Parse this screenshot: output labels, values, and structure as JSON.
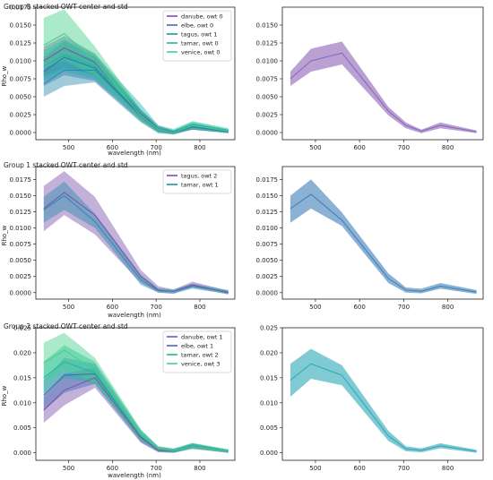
{
  "colors": {
    "danube": "#7b52ab",
    "elbe": "#3f6fb0",
    "tagus": "#2a8cae",
    "tamar": "#1fb5a8",
    "venice": "#43d08a",
    "purple": "#8b63b8",
    "blue": "#3d7fb8",
    "teal": "#2ba7b8"
  },
  "chart_data": [
    {
      "panel": "group0-stacked",
      "type": "area",
      "title": "Group 0 stacked OWT center and std",
      "xlabel": "wavelength (nm)",
      "ylabel": "Rho_w",
      "xlim": [
        425,
        880
      ],
      "ylim": [
        -0.001,
        0.0175
      ],
      "xticks": [
        500,
        600,
        700,
        800
      ],
      "yticks": [
        0.0,
        0.0025,
        0.005,
        0.0075,
        0.01,
        0.0125,
        0.015,
        0.0175
      ],
      "ytick_labels": [
        "0.0000",
        "0.0025",
        "0.0050",
        "0.0075",
        "0.0100",
        "0.0125",
        "0.0150",
        "0.0175"
      ],
      "legend": "top-right",
      "x": [
        443,
        490,
        560,
        665,
        705,
        740,
        783,
        865
      ],
      "series": [
        {
          "name": "danube, owt 0",
          "color_key": "danube",
          "mean": [
            0.01,
            0.0118,
            0.0098,
            0.0026,
            0.0006,
            0.0001,
            0.0008,
            0.0001
          ],
          "lower": [
            0.0078,
            0.009,
            0.008,
            0.0018,
            0.0002,
            -0.0001,
            0.0004,
            -0.0001
          ],
          "upper": [
            0.012,
            0.0135,
            0.011,
            0.0032,
            0.001,
            0.0003,
            0.0012,
            0.0003
          ]
        },
        {
          "name": "elbe, owt 0",
          "color_key": "elbe",
          "mean": [
            0.0085,
            0.0105,
            0.009,
            0.0024,
            0.0004,
            0.0,
            0.0008,
            0.0002
          ],
          "lower": [
            0.0065,
            0.008,
            0.0072,
            0.0016,
            0.0,
            -0.0002,
            0.0004,
            0.0
          ],
          "upper": [
            0.0105,
            0.0128,
            0.0106,
            0.0032,
            0.0008,
            0.0003,
            0.0012,
            0.0004
          ]
        },
        {
          "name": "tagus, owt 1",
          "color_key": "tagus",
          "mean": [
            0.0068,
            0.0087,
            0.0087,
            0.0023,
            0.0003,
            -0.0001,
            0.0008,
            0.0001
          ],
          "lower": [
            0.005,
            0.0065,
            0.007,
            0.0014,
            -0.0001,
            -0.0003,
            0.0004,
            -0.0001
          ],
          "upper": [
            0.0088,
            0.011,
            0.0103,
            0.0031,
            0.0007,
            0.0002,
            0.0012,
            0.0003
          ]
        },
        {
          "name": "tamar, owt 0",
          "color_key": "tamar",
          "mean": [
            0.0093,
            0.0108,
            0.0093,
            0.003,
            0.0006,
            0.0002,
            0.0012,
            0.0003
          ],
          "lower": [
            0.0072,
            0.0085,
            0.0075,
            0.002,
            0.0002,
            -0.0001,
            0.0007,
            0.0
          ],
          "upper": [
            0.0115,
            0.013,
            0.011,
            0.004,
            0.001,
            0.0005,
            0.0016,
            0.0006
          ]
        },
        {
          "name": "venice, owt 0",
          "color_key": "venice",
          "mean": [
            0.0122,
            0.0138,
            0.01,
            0.0024,
            0.0004,
            0.0,
            0.001,
            0.0002
          ],
          "lower": [
            0.009,
            0.01,
            0.008,
            0.0016,
            0.0,
            -0.0002,
            0.0005,
            -0.0001
          ],
          "upper": [
            0.016,
            0.0172,
            0.012,
            0.0032,
            0.0008,
            0.0003,
            0.0015,
            0.0005
          ]
        }
      ]
    },
    {
      "panel": "group0-center",
      "type": "area",
      "title": "",
      "xlim": [
        425,
        880
      ],
      "ylim": [
        -0.001,
        0.0175
      ],
      "xticks": [
        500,
        600,
        700,
        800
      ],
      "yticks": [
        0.0,
        0.0025,
        0.005,
        0.0075,
        0.01,
        0.0125,
        0.015
      ],
      "ytick_labels": [
        "0.0000",
        "0.0025",
        "0.0050",
        "0.0075",
        "0.0100",
        "0.0125",
        "0.0150"
      ],
      "x": [
        443,
        490,
        560,
        665,
        705,
        740,
        783,
        865
      ],
      "series": [
        {
          "color_key": "purple",
          "mean": [
            0.0075,
            0.01,
            0.0111,
            0.003,
            0.001,
            0.0002,
            0.001,
            0.0001
          ],
          "lower": [
            0.0065,
            0.0085,
            0.0095,
            0.0024,
            0.0006,
            -0.0001,
            0.0006,
            -0.0001
          ],
          "upper": [
            0.0085,
            0.0117,
            0.0127,
            0.0036,
            0.0014,
            0.0004,
            0.0014,
            0.0003
          ]
        }
      ]
    },
    {
      "panel": "group1-stacked",
      "type": "area",
      "title": "Group 1 stacked OWT center and std",
      "xlabel": "wavelength (nm)",
      "ylabel": "Rho_w",
      "xlim": [
        425,
        880
      ],
      "ylim": [
        -0.001,
        0.0195
      ],
      "xticks": [
        500,
        600,
        700,
        800
      ],
      "yticks": [
        0.0,
        0.0025,
        0.005,
        0.0075,
        0.01,
        0.0125,
        0.015,
        0.0175
      ],
      "ytick_labels": [
        "0.0000",
        "0.0025",
        "0.0050",
        "0.0075",
        "0.0100",
        "0.0125",
        "0.0150",
        "0.0175"
      ],
      "legend": "top-right",
      "x": [
        443,
        490,
        560,
        665,
        705,
        740,
        783,
        865
      ],
      "series": [
        {
          "name": "tagus, owt 2",
          "color_key": "danube",
          "mean": [
            0.013,
            0.0155,
            0.012,
            0.0025,
            0.0004,
            0.0002,
            0.0012,
            0.0
          ],
          "lower": [
            0.0095,
            0.012,
            0.009,
            0.0015,
            0.0,
            -0.0002,
            0.0008,
            -0.0003
          ],
          "upper": [
            0.0165,
            0.0188,
            0.0148,
            0.0035,
            0.001,
            0.0005,
            0.0017,
            0.0003
          ]
        },
        {
          "name": "tamar, owt 1",
          "color_key": "tagus",
          "mean": [
            0.0128,
            0.015,
            0.011,
            0.002,
            0.0003,
            0.0002,
            0.001,
            0.0001
          ],
          "lower": [
            0.0108,
            0.0128,
            0.01,
            0.0012,
            0.0,
            -0.0001,
            0.0006,
            -0.0002
          ],
          "upper": [
            0.0148,
            0.0172,
            0.0122,
            0.0028,
            0.0007,
            0.0005,
            0.0014,
            0.0004
          ]
        }
      ]
    },
    {
      "panel": "group1-center",
      "type": "area",
      "title": "",
      "xlim": [
        425,
        880
      ],
      "ylim": [
        -0.001,
        0.0195
      ],
      "xticks": [
        500,
        600,
        700,
        800
      ],
      "yticks": [
        0.0,
        0.0025,
        0.005,
        0.0075,
        0.01,
        0.0125,
        0.015,
        0.0175
      ],
      "ytick_labels": [
        "0.0000",
        "0.0025",
        "0.0050",
        "0.0075",
        "0.0100",
        "0.0125",
        "0.0150",
        "0.0175"
      ],
      "x": [
        443,
        490,
        560,
        665,
        705,
        740,
        783,
        865
      ],
      "series": [
        {
          "color_key": "blue",
          "mean": [
            0.013,
            0.0152,
            0.0112,
            0.0022,
            0.0004,
            0.0002,
            0.001,
            0.0001
          ],
          "lower": [
            0.0108,
            0.013,
            0.0103,
            0.0015,
            0.0,
            -0.0001,
            0.0006,
            -0.0002
          ],
          "upper": [
            0.015,
            0.0175,
            0.0124,
            0.003,
            0.0008,
            0.0006,
            0.0015,
            0.0004
          ]
        }
      ]
    },
    {
      "panel": "group2-stacked",
      "type": "area",
      "title": "Group 2 stacked OWT center and std",
      "xlabel": "wavelength (nm)",
      "ylabel": "Rho_w",
      "xlim": [
        425,
        880
      ],
      "ylim": [
        -0.0015,
        0.025
      ],
      "xticks": [
        500,
        600,
        700,
        800
      ],
      "yticks": [
        0.0,
        0.005,
        0.01,
        0.015,
        0.02,
        0.025
      ],
      "ytick_labels": [
        "0.000",
        "0.005",
        "0.010",
        "0.015",
        "0.020",
        "0.025"
      ],
      "legend": "top-right",
      "x": [
        443,
        490,
        560,
        665,
        705,
        740,
        783,
        865
      ],
      "series": [
        {
          "name": "danube, owt 1",
          "color_key": "danube",
          "mean": [
            0.0085,
            0.0125,
            0.015,
            0.003,
            0.0005,
            0.0003,
            0.0013,
            0.0003
          ],
          "lower": [
            0.006,
            0.0095,
            0.013,
            0.002,
            0.0001,
            0.0,
            0.0008,
            0.0
          ],
          "upper": [
            0.0112,
            0.0158,
            0.017,
            0.004,
            0.001,
            0.0006,
            0.0018,
            0.0006
          ]
        },
        {
          "name": "elbe, owt 1",
          "color_key": "elbe",
          "mean": [
            0.0115,
            0.0155,
            0.0158,
            0.0033,
            0.0007,
            0.0004,
            0.0014,
            0.0003
          ],
          "lower": [
            0.0085,
            0.012,
            0.0138,
            0.0022,
            0.0002,
            0.0,
            0.0009,
            0.0
          ],
          "upper": [
            0.0145,
            0.019,
            0.0178,
            0.0044,
            0.0012,
            0.0008,
            0.0019,
            0.0006
          ]
        },
        {
          "name": "tamar, owt 2",
          "color_key": "tamar",
          "mean": [
            0.015,
            0.0182,
            0.016,
            0.0034,
            0.0008,
            0.0005,
            0.0015,
            0.0004
          ],
          "lower": [
            0.0118,
            0.015,
            0.0138,
            0.0024,
            0.0003,
            0.0001,
            0.001,
            0.0001
          ],
          "upper": [
            0.0182,
            0.0215,
            0.0182,
            0.0046,
            0.0013,
            0.0009,
            0.002,
            0.0007
          ]
        },
        {
          "name": "venice, owt 3",
          "color_key": "venice",
          "mean": [
            0.018,
            0.0205,
            0.0165,
            0.0036,
            0.0008,
            0.0004,
            0.0013,
            0.0003
          ],
          "lower": [
            0.014,
            0.0165,
            0.014,
            0.0025,
            0.0003,
            0.0,
            0.0008,
            0.0
          ],
          "upper": [
            0.022,
            0.024,
            0.019,
            0.0047,
            0.0013,
            0.0008,
            0.0018,
            0.0006
          ]
        }
      ]
    },
    {
      "panel": "group2-center",
      "type": "area",
      "title": "",
      "xlim": [
        425,
        880
      ],
      "ylim": [
        -0.0015,
        0.025
      ],
      "xticks": [
        500,
        600,
        700,
        800
      ],
      "yticks": [
        0.0,
        0.005,
        0.01,
        0.015,
        0.02,
        0.025
      ],
      "ytick_labels": [
        "0.000",
        "0.005",
        "0.010",
        "0.015",
        "0.020",
        "0.025"
      ],
      "x": [
        443,
        490,
        560,
        665,
        705,
        740,
        783,
        865
      ],
      "series": [
        {
          "color_key": "teal",
          "mean": [
            0.0145,
            0.0178,
            0.0155,
            0.0034,
            0.0008,
            0.0005,
            0.0014,
            0.0003
          ],
          "lower": [
            0.0112,
            0.0148,
            0.0135,
            0.0024,
            0.0003,
            0.0001,
            0.0009,
            0.0
          ],
          "upper": [
            0.0178,
            0.0208,
            0.0175,
            0.0044,
            0.0013,
            0.0009,
            0.0019,
            0.0006
          ]
        }
      ]
    }
  ]
}
